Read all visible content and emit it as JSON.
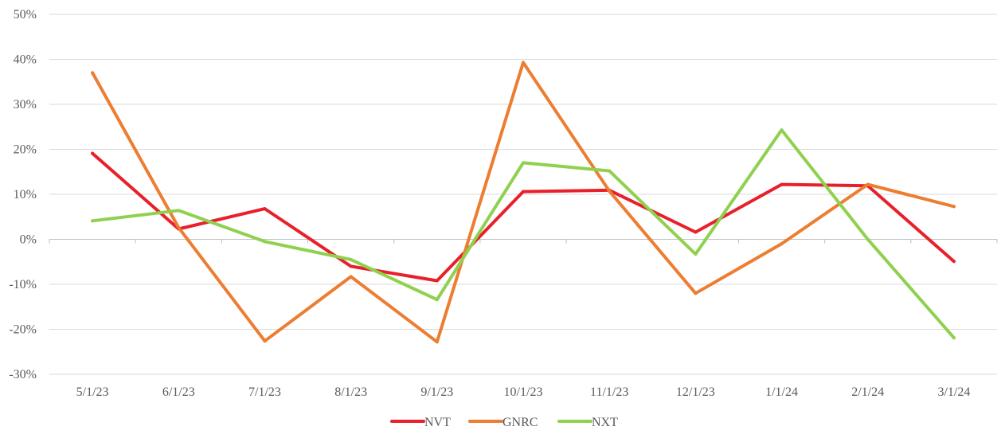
{
  "chart_data": {
    "type": "line",
    "title": "",
    "xlabel": "",
    "ylabel": "",
    "categories": [
      "5/1/23",
      "6/1/23",
      "7/1/23",
      "8/1/23",
      "9/1/23",
      "10/1/23",
      "11/1/23",
      "12/1/23",
      "1/1/24",
      "2/1/24",
      "3/1/24"
    ],
    "ylim": [
      -30,
      50
    ],
    "y_ticks": [
      50,
      40,
      30,
      20,
      10,
      0,
      -10,
      -20,
      -30
    ],
    "y_tick_labels": [
      "50%",
      "40%",
      "30%",
      "20%",
      "10%",
      "0%",
      "-10%",
      "-20%",
      "-30%"
    ],
    "y_unit": "%",
    "grid": true,
    "legend_position": "bottom",
    "series": [
      {
        "name": "NVT",
        "color": "#E8202A",
        "values": [
          19.1,
          2.3,
          6.8,
          -6.0,
          -9.2,
          10.6,
          10.9,
          1.6,
          12.2,
          11.9,
          -4.9
        ]
      },
      {
        "name": "GNRC",
        "color": "#ED7D31",
        "values": [
          37.0,
          2.6,
          -22.6,
          -8.3,
          -22.8,
          39.3,
          10.7,
          -12.0,
          -1.0,
          12.2,
          7.3
        ]
      },
      {
        "name": "NXT",
        "color": "#8FD14F",
        "values": [
          4.1,
          6.4,
          -0.5,
          -4.5,
          -13.4,
          17.0,
          15.2,
          -3.3,
          24.3,
          0.0,
          -21.9
        ]
      }
    ]
  }
}
